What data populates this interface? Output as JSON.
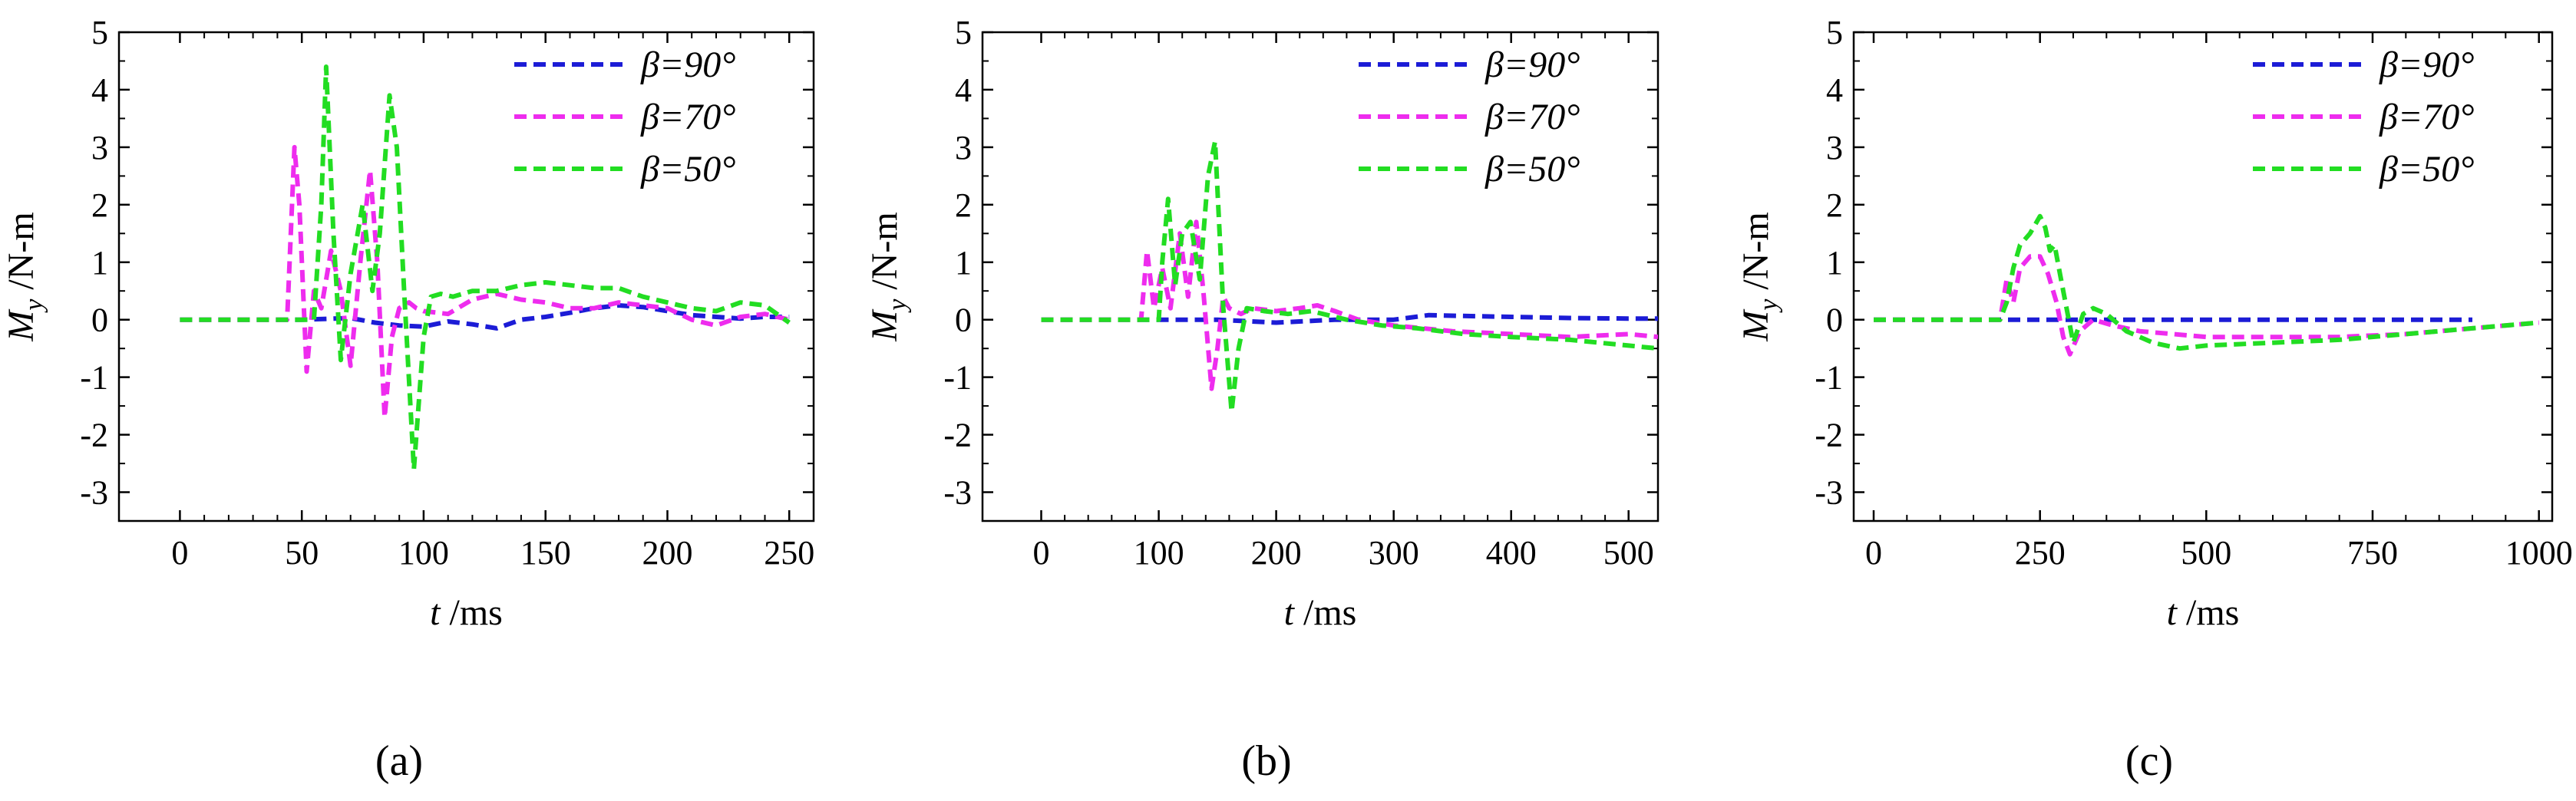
{
  "figure": {
    "panel_labels": [
      "(a)",
      "(b)",
      "(c)"
    ],
    "colors": {
      "beta90": "#1c1cd6",
      "beta70": "#ee2cee",
      "beta50": "#22dd22"
    }
  },
  "chart_data": [
    {
      "type": "line",
      "panel": "(a)",
      "xlabel_var": "t",
      "xlabel_unit": " /ms",
      "ylabel_var": "M",
      "ylabel_sub": "y",
      "ylabel_unit": " /N-m",
      "xlim": [
        -25,
        260
      ],
      "ylim": [
        -3.5,
        5
      ],
      "xticks": [
        0,
        50,
        100,
        150,
        200,
        250
      ],
      "xtick_labels": [
        "0",
        "50",
        "100",
        "150",
        "200",
        "250"
      ],
      "yticks": [
        -3,
        -2,
        -1,
        0,
        1,
        2,
        3,
        4,
        5
      ],
      "ytick_labels": [
        "-3",
        "-2",
        "-1",
        "0",
        "1",
        "2",
        "3",
        "4",
        "5"
      ],
      "legend_position": "top-right",
      "series": [
        {
          "name": "β=90°",
          "color": "#1c1cd6",
          "x": [
            0,
            50,
            70,
            80,
            90,
            100,
            110,
            120,
            130,
            140,
            150,
            160,
            170,
            180,
            190,
            200,
            210,
            220,
            230,
            240,
            250
          ],
          "y": [
            0,
            0,
            0.03,
            -0.05,
            -0.1,
            -0.12,
            -0.03,
            -0.08,
            -0.15,
            0,
            0.05,
            0.12,
            0.2,
            0.25,
            0.22,
            0.15,
            0.08,
            0.05,
            0.02,
            0.05,
            0.05
          ]
        },
        {
          "name": "β=70°",
          "color": "#ee2cee",
          "x": [
            0,
            44,
            47,
            49,
            52,
            55,
            58,
            62,
            66,
            70,
            74,
            78,
            81,
            84,
            87,
            90,
            94,
            97,
            100,
            110,
            120,
            130,
            140,
            150,
            160,
            170,
            180,
            190,
            200,
            210,
            220,
            230,
            240,
            250
          ],
          "y": [
            0,
            0,
            3.0,
            2.0,
            -0.9,
            0.5,
            0.2,
            1.2,
            0.5,
            -0.8,
            1.0,
            2.6,
            1.0,
            -1.7,
            -0.3,
            0.2,
            0.3,
            0.2,
            0.15,
            0.1,
            0.35,
            0.45,
            0.35,
            0.3,
            0.2,
            0.2,
            0.3,
            0.25,
            0.2,
            0.0,
            -0.1,
            0.05,
            0.1,
            0.0
          ]
        },
        {
          "name": "β=50°",
          "color": "#22dd22",
          "x": [
            0,
            55,
            58,
            60,
            63,
            66,
            70,
            75,
            79,
            82,
            86,
            89,
            92,
            96,
            100,
            103,
            107,
            112,
            120,
            130,
            140,
            150,
            160,
            170,
            180,
            190,
            200,
            210,
            220,
            230,
            240,
            250
          ],
          "y": [
            0,
            0,
            2.0,
            4.4,
            1.5,
            -0.7,
            0.8,
            2.0,
            0.5,
            1.5,
            3.9,
            3.0,
            0.5,
            -2.6,
            -0.3,
            0.4,
            0.45,
            0.4,
            0.5,
            0.5,
            0.6,
            0.65,
            0.6,
            0.55,
            0.55,
            0.4,
            0.3,
            0.2,
            0.15,
            0.3,
            0.25,
            -0.05
          ]
        }
      ]
    },
    {
      "type": "line",
      "panel": "(b)",
      "xlabel_var": "t",
      "xlabel_unit": " /ms",
      "ylabel_var": "M",
      "ylabel_sub": "y",
      "ylabel_unit": " /N-m",
      "xlim": [
        -50,
        525
      ],
      "ylim": [
        -3.5,
        5
      ],
      "xticks": [
        0,
        100,
        200,
        300,
        400,
        500
      ],
      "xtick_labels": [
        "0",
        "100",
        "200",
        "300",
        "400",
        "500"
      ],
      "yticks": [
        -3,
        -2,
        -1,
        0,
        1,
        2,
        3,
        4,
        5
      ],
      "ytick_labels": [
        "-3",
        "-2",
        "-1",
        "0",
        "1",
        "2",
        "3",
        "4",
        "5"
      ],
      "legend_position": "top-right",
      "series": [
        {
          "name": "β=90°",
          "color": "#1c1cd6",
          "x": [
            0,
            100,
            150,
            200,
            250,
            300,
            330,
            350,
            400,
            450,
            500,
            525
          ],
          "y": [
            0,
            0,
            0,
            -0.05,
            0,
            0,
            0.08,
            0.07,
            0.05,
            0.03,
            0.02,
            0.02
          ]
        },
        {
          "name": "β=70°",
          "color": "#ee2cee",
          "x": [
            0,
            85,
            90,
            96,
            103,
            110,
            118,
            125,
            132,
            138,
            145,
            150,
            155,
            160,
            170,
            180,
            200,
            220,
            235,
            250,
            270,
            300,
            350,
            400,
            450,
            500,
            525
          ],
          "y": [
            0,
            0,
            1.2,
            0.2,
            0.9,
            0.2,
            1.5,
            0.4,
            1.7,
            0.5,
            -1.2,
            -0.5,
            0.4,
            0.2,
            0.1,
            0.2,
            0.15,
            0.2,
            0.25,
            0.15,
            0.0,
            -0.1,
            -0.2,
            -0.25,
            -0.3,
            -0.25,
            -0.3
          ]
        },
        {
          "name": "β=50°",
          "color": "#22dd22",
          "x": [
            0,
            100,
            103,
            108,
            114,
            120,
            127,
            135,
            142,
            148,
            155,
            162,
            168,
            175,
            190,
            210,
            230,
            260,
            290,
            320,
            360,
            400,
            450,
            500,
            525
          ],
          "y": [
            0,
            0,
            1.0,
            2.1,
            0.6,
            1.5,
            1.7,
            0.7,
            2.5,
            3.1,
            0.2,
            -1.6,
            -0.5,
            0.2,
            0.15,
            0.1,
            0.15,
            0.0,
            -0.1,
            -0.15,
            -0.25,
            -0.3,
            -0.35,
            -0.45,
            -0.5
          ]
        }
      ]
    },
    {
      "type": "line",
      "panel": "(c)",
      "xlabel_var": "t",
      "xlabel_unit": " /ms",
      "ylabel_var": "M",
      "ylabel_sub": "y",
      "ylabel_unit": " /N-m",
      "xlim": [
        -30,
        1020
      ],
      "ylim": [
        -3.5,
        5
      ],
      "xticks": [
        0,
        250,
        500,
        750,
        1000
      ],
      "xtick_labels": [
        "0",
        "250",
        "500",
        "750",
        "1000"
      ],
      "yticks": [
        -3,
        -2,
        -1,
        0,
        1,
        2,
        3,
        4,
        5
      ],
      "ytick_labels": [
        "-3",
        "-2",
        "-1",
        "0",
        "1",
        "2",
        "3",
        "4",
        "5"
      ],
      "legend_position": "top-right",
      "series": [
        {
          "name": "β=90°",
          "color": "#1c1cd6",
          "x": [
            0,
            300,
            400,
            500,
            600,
            700,
            800,
            900
          ],
          "y": [
            0,
            0,
            0,
            0,
            0,
            0,
            0,
            0
          ]
        },
        {
          "name": "β=70°",
          "color": "#ee2cee",
          "x": [
            0,
            190,
            200,
            210,
            220,
            235,
            250,
            262,
            275,
            285,
            295,
            310,
            330,
            360,
            400,
            450,
            500,
            600,
            700,
            800,
            900,
            1000
          ],
          "y": [
            0,
            0,
            0.7,
            0.3,
            0.9,
            1.1,
            1.1,
            0.8,
            0.3,
            -0.3,
            -0.6,
            -0.2,
            0.0,
            -0.1,
            -0.2,
            -0.25,
            -0.3,
            -0.3,
            -0.3,
            -0.25,
            -0.15,
            -0.05
          ]
        },
        {
          "name": "β=50°",
          "color": "#22dd22",
          "x": [
            0,
            190,
            200,
            210,
            220,
            235,
            250,
            258,
            265,
            272,
            280,
            290,
            300,
            315,
            330,
            350,
            380,
            420,
            460,
            500,
            600,
            700,
            800,
            900,
            1000
          ],
          "y": [
            0,
            0,
            0.3,
            0.9,
            1.3,
            1.5,
            1.8,
            1.6,
            1.2,
            1.3,
            0.8,
            0.2,
            -0.4,
            0.1,
            0.2,
            0.1,
            -0.2,
            -0.4,
            -0.5,
            -0.45,
            -0.4,
            -0.35,
            -0.25,
            -0.15,
            -0.05
          ]
        }
      ]
    }
  ]
}
